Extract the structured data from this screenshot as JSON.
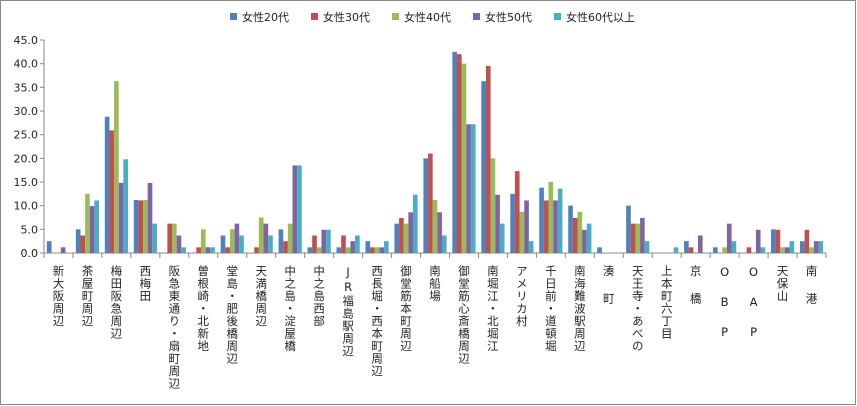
{
  "chart_data": {
    "type": "bar",
    "categories": [
      "新大阪周辺",
      "茶屋町周辺",
      "梅田阪急周辺",
      "西梅田",
      "阪急東通り・扇町周辺",
      "曽根崎・北新地",
      "堂島・肥後橋周辺",
      "天満橋周辺",
      "中之島・淀屋橋",
      "中之島西部",
      "JR福島駅周辺",
      "西長堀・西本町周辺",
      "御堂筋本町周辺",
      "南船場",
      "御堂筋心斎橋周辺",
      "南堀江・北堀江",
      "アメリカ村",
      "千日前・道頓堀",
      "南海難波駅周辺",
      "湊 町",
      "天王寺・あべの",
      "上本町六丁目",
      "京 橋",
      "O B P",
      "O A P",
      "天保山",
      "南 港"
    ],
    "series": [
      {
        "name": "女性20代",
        "color": "#4f81bd",
        "values": [
          2.5,
          5.0,
          28.8,
          11.2,
          0,
          0,
          3.7,
          0,
          5.0,
          1.2,
          1.2,
          2.5,
          6.2,
          20.0,
          42.5,
          36.3,
          12.5,
          13.8,
          10.0,
          1.2,
          10.0,
          0,
          2.5,
          1.2,
          0,
          5.0,
          2.5
        ]
      },
      {
        "name": "女性30代",
        "color": "#c0504d",
        "values": [
          0,
          3.7,
          25.9,
          11.1,
          6.2,
          1.2,
          1.2,
          1.2,
          2.5,
          3.7,
          3.7,
          1.2,
          7.4,
          21.0,
          42.0,
          39.5,
          17.3,
          11.1,
          7.4,
          0,
          6.2,
          0,
          1.2,
          0,
          1.2,
          4.9,
          4.9
        ]
      },
      {
        "name": "女性40代",
        "color": "#9bbb59",
        "values": [
          0,
          12.5,
          36.3,
          11.2,
          6.2,
          5.0,
          5.0,
          7.5,
          6.2,
          1.2,
          1.2,
          1.2,
          6.2,
          11.2,
          40.0,
          20.0,
          8.7,
          15.0,
          8.7,
          0,
          6.2,
          0,
          0,
          1.2,
          0,
          1.2,
          1.2
        ]
      },
      {
        "name": "女性50代",
        "color": "#8064a2",
        "values": [
          1.2,
          9.9,
          14.8,
          14.8,
          3.7,
          1.2,
          6.2,
          6.2,
          18.5,
          4.9,
          2.5,
          1.2,
          8.6,
          8.6,
          27.2,
          12.3,
          11.1,
          11.1,
          4.9,
          0,
          7.4,
          0,
          3.7,
          6.2,
          4.9,
          1.2,
          2.5
        ]
      },
      {
        "name": "女性60代以上",
        "color": "#4bacc6",
        "values": [
          0,
          11.1,
          19.8,
          6.2,
          1.2,
          1.2,
          3.7,
          3.7,
          18.5,
          4.9,
          3.7,
          2.5,
          12.3,
          3.7,
          27.2,
          6.2,
          2.5,
          13.6,
          6.2,
          0,
          2.5,
          1.2,
          0,
          2.5,
          1.2,
          2.5,
          2.5
        ]
      }
    ],
    "ylim": [
      0,
      45
    ],
    "yticks": [
      {
        "value": 0,
        "label": "0.0"
      },
      {
        "value": 5,
        "label": "5.0"
      },
      {
        "value": 10,
        "label": "10.0"
      },
      {
        "value": 15,
        "label": "15.0"
      },
      {
        "value": 20,
        "label": "20.0"
      },
      {
        "value": 25,
        "label": "25.0"
      },
      {
        "value": 30,
        "label": "30.0"
      },
      {
        "value": 35,
        "label": "35.0"
      },
      {
        "value": 40,
        "label": "40.0"
      },
      {
        "value": 45,
        "label": "45.0"
      }
    ],
    "grid": false
  }
}
